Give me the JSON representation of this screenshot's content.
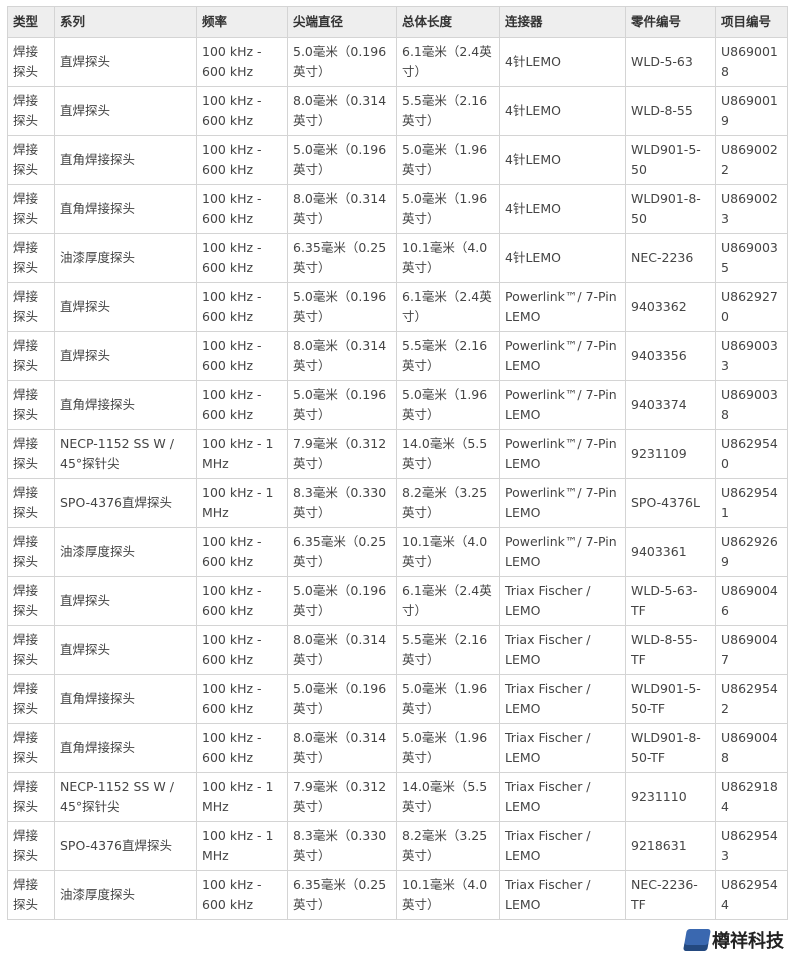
{
  "headers": [
    "类型",
    "系列",
    "频率",
    "尖端直径",
    "总体长度",
    "连接器",
    "零件编号",
    "项目编号"
  ],
  "rows": [
    [
      "焊接探头",
      "直焊探头",
      "100 kHz - 600 kHz",
      "5.0毫米（0.196英寸）",
      "6.1毫米（2.4英寸）",
      "4针LEMO",
      "WLD-5-63",
      "U8690018"
    ],
    [
      "焊接探头",
      "直焊探头",
      "100 kHz - 600 kHz",
      "8.0毫米（0.314英寸）",
      "5.5毫米（2.16英寸）",
      "4针LEMO",
      "WLD-8-55",
      "U8690019"
    ],
    [
      "焊接探头",
      "直角焊接探头",
      "100 kHz - 600 kHz",
      "5.0毫米（0.196英寸）",
      "5.0毫米（1.96英寸）",
      "4针LEMO",
      "WLD901-5-50",
      "U8690022"
    ],
    [
      "焊接探头",
      "直角焊接探头",
      "100 kHz - 600 kHz",
      "8.0毫米（0.314英寸）",
      "5.0毫米（1.96英寸）",
      "4针LEMO",
      "WLD901-8-50",
      "U8690023"
    ],
    [
      "焊接探头",
      "油漆厚度探头",
      "100 kHz - 600 kHz",
      "6.35毫米（0.25英寸）",
      "10.1毫米（4.0英寸）",
      "4针LEMO",
      "NEC-2236",
      "U8690035"
    ],
    [
      "焊接探头",
      "直焊探头",
      "100 kHz - 600 kHz",
      "5.0毫米（0.196英寸）",
      "6.1毫米（2.4英寸）",
      "Powerlink™/ 7-Pin LEMO",
      "9403362",
      "U8629270"
    ],
    [
      "焊接探头",
      "直焊探头",
      "100 kHz - 600 kHz",
      "8.0毫米（0.314英寸）",
      "5.5毫米（2.16英寸）",
      "Powerlink™/ 7-Pin LEMO",
      "9403356",
      "U8690033"
    ],
    [
      "焊接探头",
      "直角焊接探头",
      "100 kHz - 600 kHz",
      "5.0毫米（0.196英寸）",
      "5.0毫米（1.96英寸）",
      "Powerlink™/ 7-Pin LEMO",
      "9403374",
      "U8690038"
    ],
    [
      "焊接探头",
      "NECP-1152 SS W / 45°探针尖",
      "100 kHz - 1 MHz",
      "7.9毫米（0.312英寸）",
      "14.0毫米（5.5英寸）",
      "Powerlink™/ 7-Pin LEMO",
      "9231109",
      "U8629540"
    ],
    [
      "焊接探头",
      "SPO-4376直焊探头",
      "100 kHz - 1 MHz",
      "8.3毫米（0.330英寸）",
      "8.2毫米（3.25英寸）",
      "Powerlink™/ 7-Pin LEMO",
      "SPO-4376L",
      "U8629541"
    ],
    [
      "焊接探头",
      "油漆厚度探头",
      "100 kHz - 600 kHz",
      "6.35毫米（0.25英寸）",
      "10.1毫米（4.0英寸）",
      "Powerlink™/ 7-Pin LEMO",
      "9403361",
      "U8629269"
    ],
    [
      "焊接探头",
      "直焊探头",
      "100 kHz - 600 kHz",
      "5.0毫米（0.196英寸）",
      "6.1毫米（2.4英寸）",
      "Triax Fischer / LEMO",
      "WLD-5-63-TF",
      "U8690046"
    ],
    [
      "焊接探头",
      "直焊探头",
      "100 kHz - 600 kHz",
      "8.0毫米（0.314英寸）",
      "5.5毫米（2.16英寸）",
      "Triax Fischer / LEMO",
      "WLD-8-55-TF",
      "U8690047"
    ],
    [
      "焊接探头",
      "直角焊接探头",
      "100 kHz - 600 kHz",
      "5.0毫米（0.196英寸）",
      "5.0毫米（1.96英寸）",
      "Triax Fischer / LEMO",
      "WLD901-5-50-TF",
      "U8629542"
    ],
    [
      "焊接探头",
      "直角焊接探头",
      "100 kHz - 600 kHz",
      "8.0毫米（0.314英寸）",
      "5.0毫米（1.96英寸）",
      "Triax Fischer / LEMO",
      "WLD901-8-50-TF",
      "U8690048"
    ],
    [
      "焊接探头",
      "NECP-1152 SS W / 45°探针尖",
      "100 kHz - 1 MHz",
      "7.9毫米（0.312英寸）",
      "14.0毫米（5.5英寸）",
      "Triax Fischer / LEMO",
      "9231110",
      "U8629184"
    ],
    [
      "焊接探头",
      "SPO-4376直焊探头",
      "100 kHz - 1 MHz",
      "8.3毫米（0.330英寸）",
      "8.2毫米（3.25英寸）",
      "Triax Fischer / LEMO",
      "9218631",
      "U8629543"
    ],
    [
      "焊接探头",
      "油漆厚度探头",
      "100 kHz - 600 kHz",
      "6.35毫米（0.25英寸）",
      "10.1毫米（4.0英寸）",
      "Triax Fischer / LEMO",
      "NEC-2236-TF",
      "U8629544"
    ]
  ],
  "watermark": {
    "text": "樽祥科技"
  }
}
